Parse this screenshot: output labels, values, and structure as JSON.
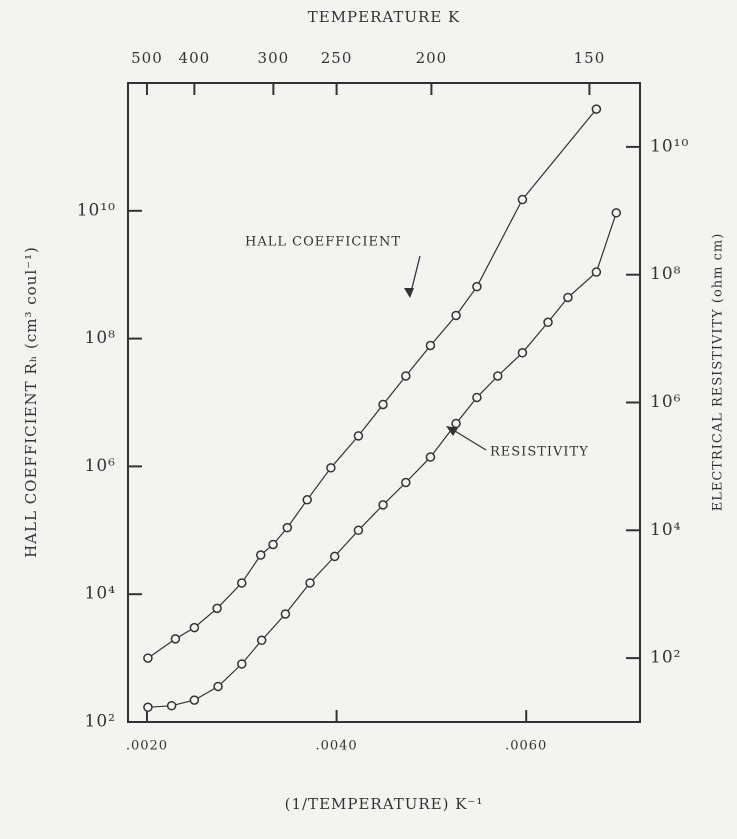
{
  "chart_data": {
    "type": "line",
    "top_axis_label": "TEMPERATURE K",
    "xlabel": "(1/TEMPERATURE) K⁻¹",
    "ylabel": "HALL COEFFICIENT Rₕ (cm³ coul⁻¹)",
    "y2label": "ELECTRICAL RESISTIVITY (ohm cm)",
    "xlim": [
      0.0018,
      0.0072
    ],
    "xticks": [
      {
        "value": 0.002,
        "label": ".0020"
      },
      {
        "value": 0.004,
        "label": ".0040"
      },
      {
        "value": 0.006,
        "label": ".0060"
      }
    ],
    "x2scale": "reciprocal",
    "x2ticks": [
      500,
      400,
      300,
      250,
      200,
      150
    ],
    "ylim": [
      100,
      1000000000000
    ],
    "yscale": "log",
    "yticks": [
      {
        "value": 100,
        "label": "10²"
      },
      {
        "value": 10000,
        "label": "10⁴"
      },
      {
        "value": 1000000,
        "label": "10⁶"
      },
      {
        "value": 100000000,
        "label": "10⁸"
      },
      {
        "value": 10000000000,
        "label": "10¹⁰"
      }
    ],
    "y2lim": [
      10,
      100000000000
    ],
    "y2scale": "log",
    "y2ticks": [
      {
        "value": 100,
        "label": "10²"
      },
      {
        "value": 10000,
        "label": "10⁴"
      },
      {
        "value": 1000000,
        "label": "10⁶"
      },
      {
        "value": 100000000,
        "label": "10⁸"
      },
      {
        "value": 10000000000,
        "label": "10¹⁰"
      }
    ],
    "series": [
      {
        "name": "HALL COEFFICIENT",
        "color": "#333333",
        "axis": "y",
        "x": [
          0.00201,
          0.0023,
          0.0025,
          0.00274,
          0.003,
          0.0032,
          0.00333,
          0.00348,
          0.00369,
          0.00394,
          0.00423,
          0.00449,
          0.00473,
          0.00499,
          0.00526,
          0.00548,
          0.00596,
          0.00674
        ],
        "values": [
          1000,
          2000,
          3000,
          6000,
          15000,
          41000,
          60000,
          110000,
          300000,
          950000,
          3000000,
          9300000,
          26000000,
          78000000,
          230000000,
          650000000,
          15000000000,
          390000000000
        ]
      },
      {
        "name": "RESISTIVITY",
        "color": "#333333",
        "axis": "y2",
        "x": [
          0.00201,
          0.00226,
          0.0025,
          0.00275,
          0.003,
          0.00321,
          0.00346,
          0.00372,
          0.00398,
          0.00423,
          0.00449,
          0.00473,
          0.00499,
          0.00526,
          0.00548,
          0.0057,
          0.00596,
          0.00623,
          0.00644,
          0.00674,
          0.00695
        ],
        "values": [
          17,
          18,
          22,
          36,
          81,
          190,
          490,
          1500,
          3900,
          10000,
          25000,
          56000,
          140000,
          470000,
          1200000,
          2600000,
          6000000,
          18000000,
          44000000,
          110000000,
          930000000
        ]
      }
    ]
  }
}
